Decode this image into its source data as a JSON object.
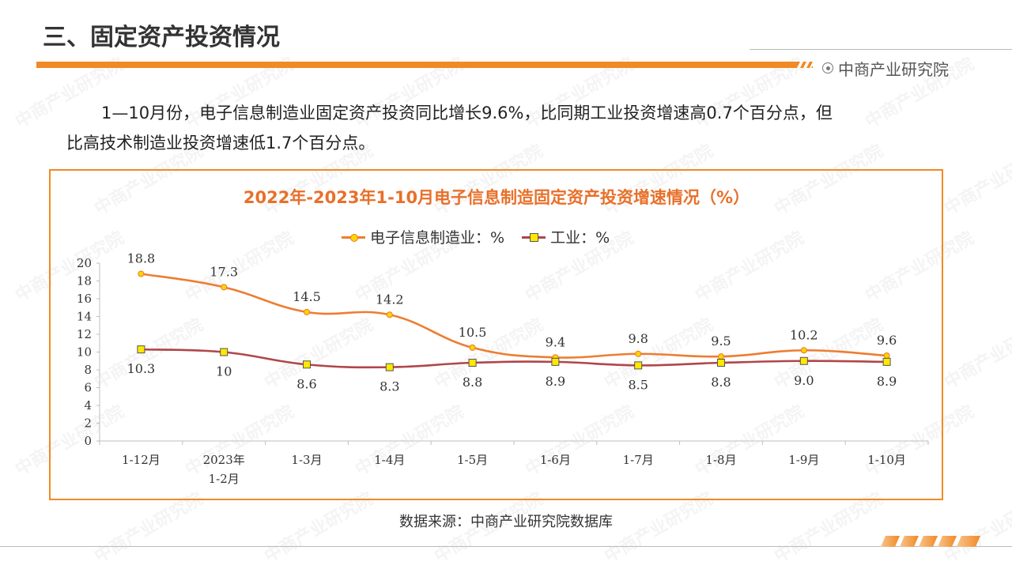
{
  "slide": {
    "title": "三、固定资产投资情况",
    "brand": "中商产业研究院",
    "paragraph_line1": "1—10月份，电子信息制造业固定资产投资同比增长9.6%，比同期工业投资增速高0.7个百分点，但",
    "paragraph_line2": "比高技术制造业投资增速低1.7个百分点。",
    "source": "数据来源：中商产业研究院数据库"
  },
  "colors": {
    "accent": "#f08a24",
    "title": "#e8702a",
    "series_electronic": "#ed7d31",
    "series_industry": "#b0464a"
  },
  "chart_data": {
    "type": "line",
    "title": "2022年-2023年1-10月电子信息制造固定资产投资增速情况（%）",
    "categories": [
      "1-12月",
      "2023年\n1-2月",
      "1-3月",
      "1-4月",
      "1-5月",
      "1-6月",
      "1-7月",
      "1-8月",
      "1-9月",
      "1-10月"
    ],
    "series": [
      {
        "name": "电子信息制造业：%",
        "values": [
          18.8,
          17.3,
          14.5,
          14.2,
          10.5,
          9.4,
          9.8,
          9.5,
          10.2,
          9.6
        ],
        "labels": [
          "18.8",
          "17.3",
          "14.5",
          "14.2",
          "10.5",
          "9.4",
          "9.8",
          "9.5",
          "10.2",
          "9.6"
        ]
      },
      {
        "name": "工业：%",
        "values": [
          10.3,
          10,
          8.6,
          8.3,
          8.8,
          8.9,
          8.5,
          8.8,
          9.0,
          8.9
        ],
        "labels": [
          "10.3",
          "10",
          "8.6",
          "8.3",
          "8.8",
          "8.9",
          "8.5",
          "8.8",
          "9.0",
          "8.9"
        ]
      }
    ],
    "ylim": [
      0,
      20
    ],
    "yticks": [
      0,
      2,
      4,
      6,
      8,
      10,
      12,
      14,
      16,
      18,
      20
    ],
    "grid": false,
    "legend": "top-center"
  }
}
